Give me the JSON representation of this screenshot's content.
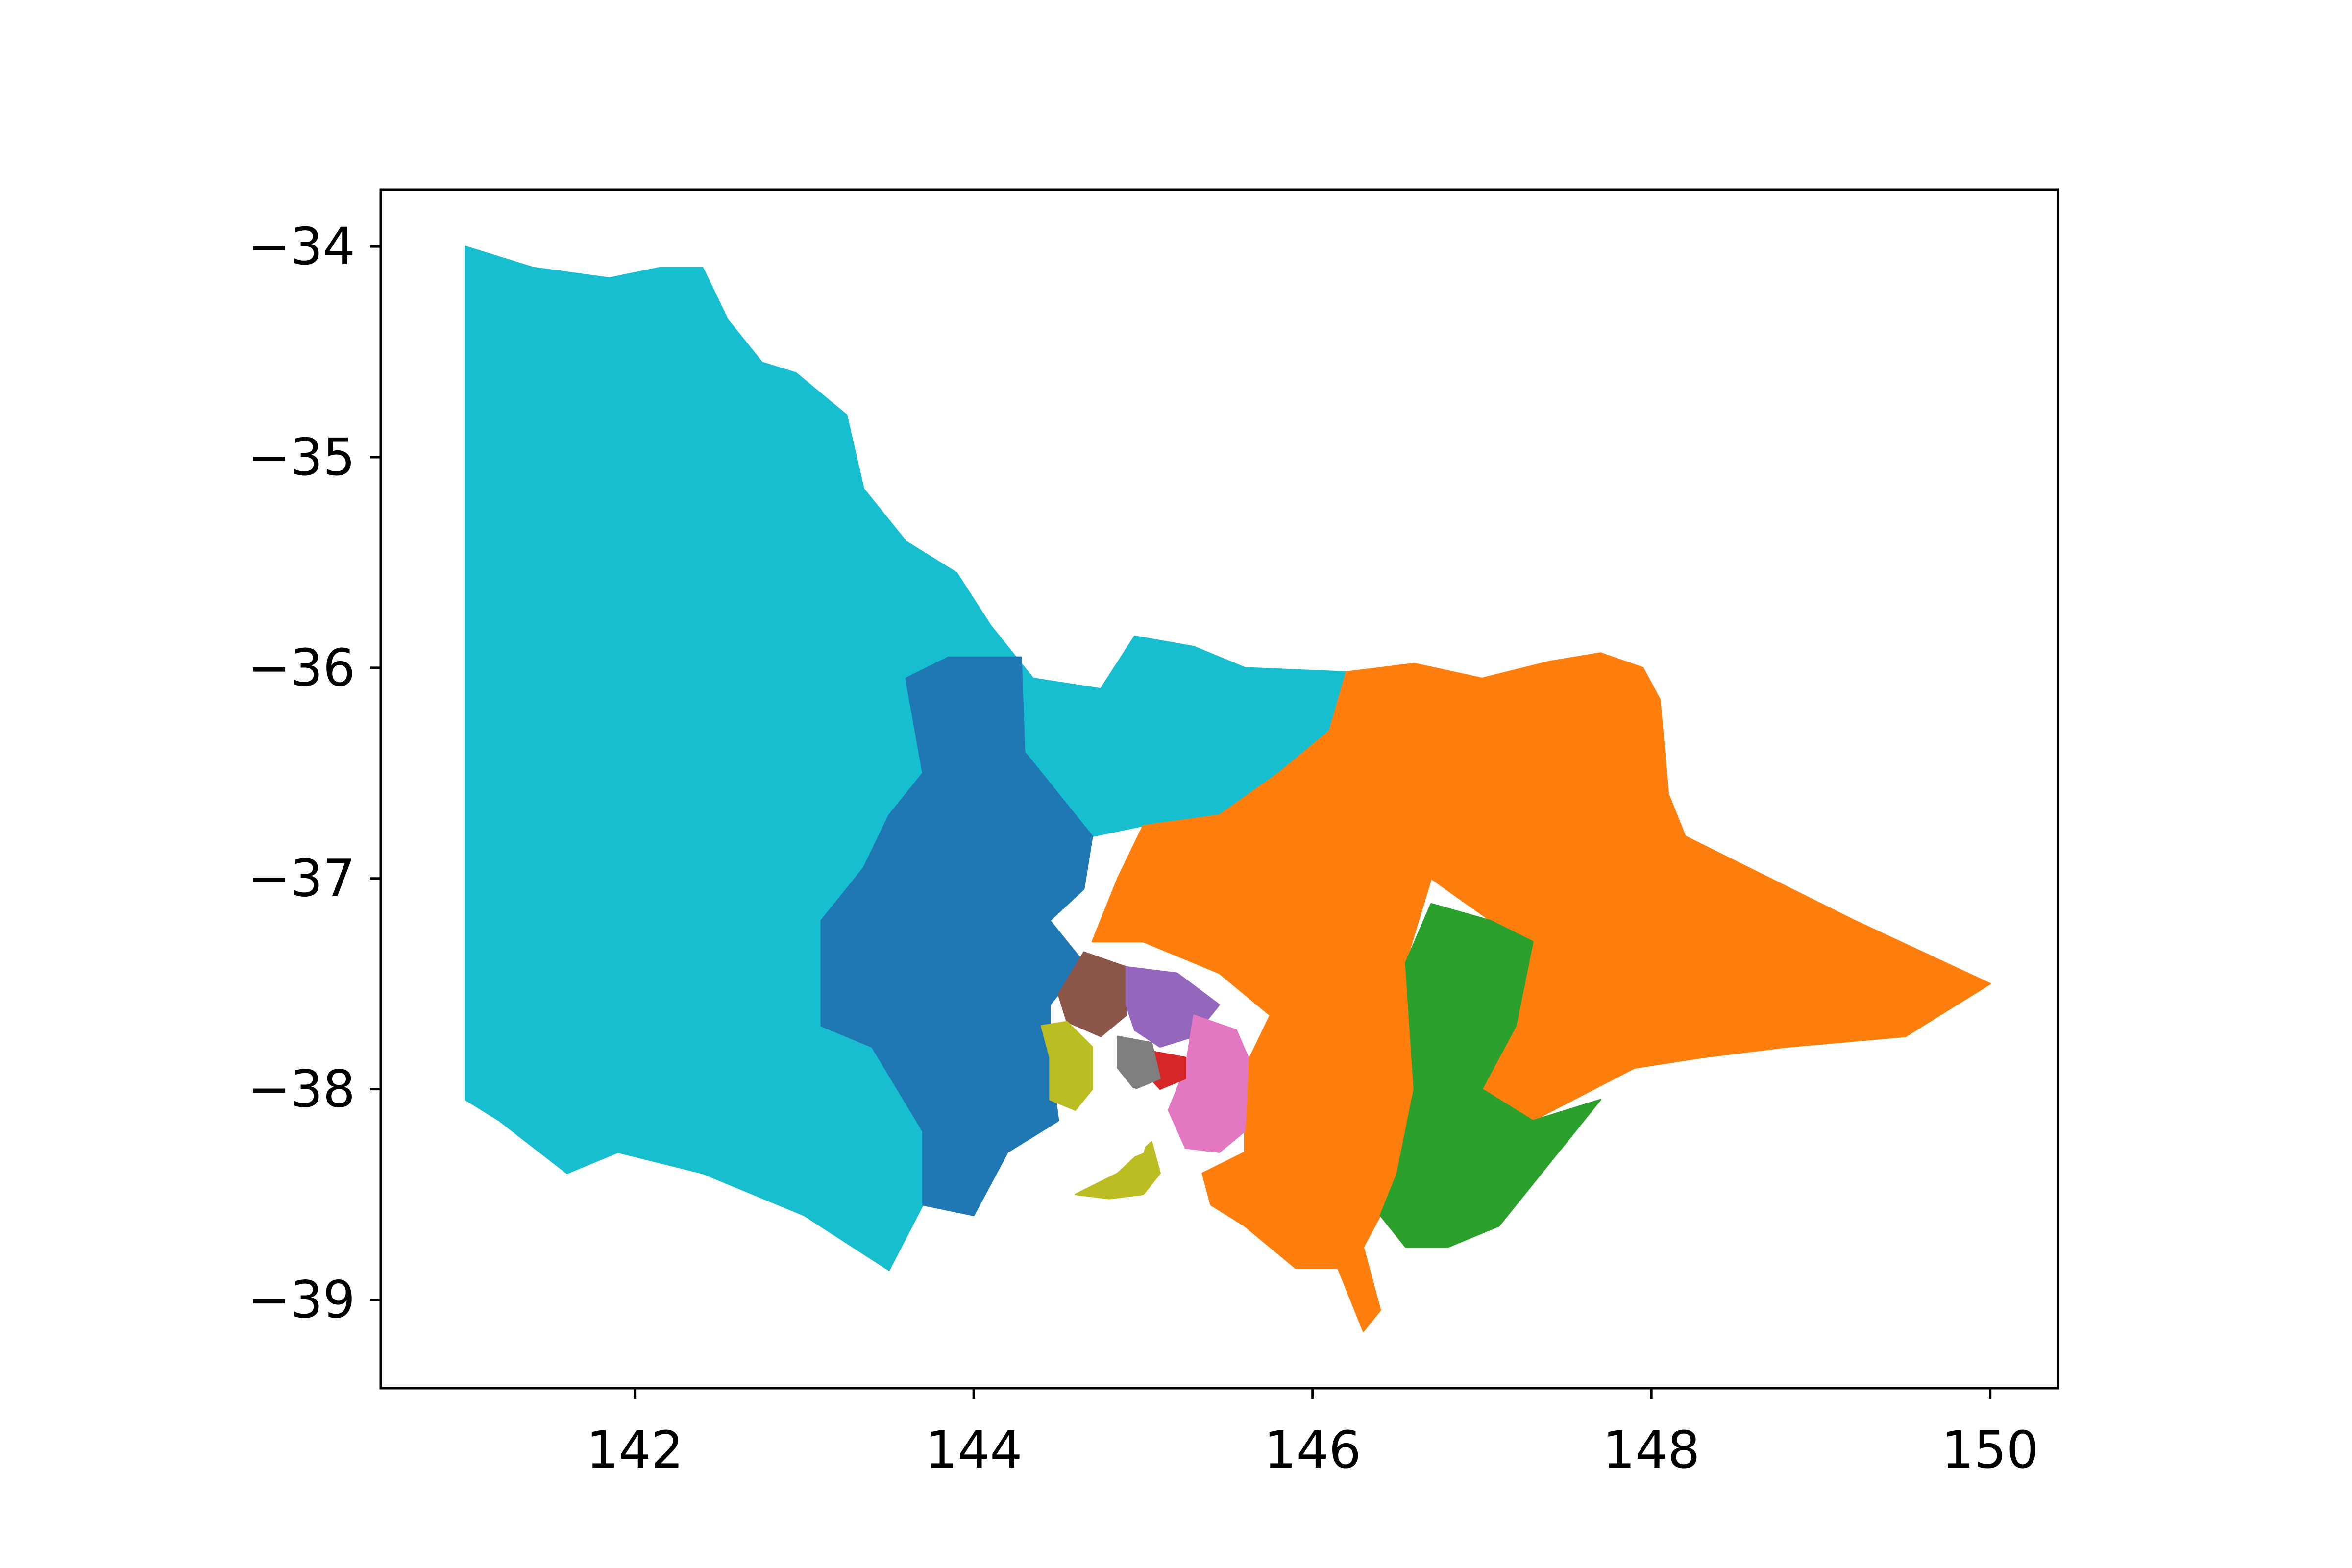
{
  "chart_data": {
    "type": "map",
    "title": "",
    "xlabel": "",
    "ylabel": "",
    "xlim": [
      140.5,
      150.4
    ],
    "ylim": [
      -39.42,
      -33.73
    ],
    "grid": false,
    "legend": "none",
    "x_ticks": [
      142,
      144,
      146,
      148,
      150
    ],
    "y_ticks": [
      -34,
      -35,
      -36,
      -37,
      -38,
      -39
    ],
    "x_tick_labels": [
      "142",
      "144",
      "146",
      "148",
      "150"
    ],
    "y_tick_labels": [
      "−34",
      "−35",
      "−36",
      "−37",
      "−38",
      "−39"
    ],
    "regions": [
      {
        "id": "west",
        "color": "#17becf",
        "outline": [
          [
            141.0,
            -34.0
          ],
          [
            141.4,
            -34.1
          ],
          [
            141.85,
            -34.15
          ],
          [
            142.15,
            -34.1
          ],
          [
            142.4,
            -34.1
          ],
          [
            142.55,
            -34.35
          ],
          [
            142.75,
            -34.55
          ],
          [
            142.95,
            -34.6
          ],
          [
            143.25,
            -34.8
          ],
          [
            143.35,
            -35.15
          ],
          [
            143.6,
            -35.4
          ],
          [
            143.9,
            -35.55
          ],
          [
            144.1,
            -35.8
          ],
          [
            144.35,
            -36.05
          ],
          [
            144.75,
            -36.1
          ],
          [
            144.95,
            -35.85
          ],
          [
            145.3,
            -35.9
          ],
          [
            145.6,
            -36.0
          ],
          [
            146.2,
            -36.02
          ],
          [
            146.1,
            -36.3
          ],
          [
            145.8,
            -36.5
          ],
          [
            145.45,
            -36.7
          ],
          [
            145.0,
            -36.75
          ],
          [
            144.7,
            -36.8
          ],
          [
            144.5,
            -36.6
          ],
          [
            144.3,
            -36.4
          ],
          [
            144.28,
            -35.95
          ],
          [
            143.85,
            -35.95
          ],
          [
            143.6,
            -36.05
          ],
          [
            143.7,
            -36.5
          ],
          [
            143.5,
            -36.7
          ],
          [
            143.35,
            -36.95
          ],
          [
            143.1,
            -37.2
          ],
          [
            143.1,
            -37.7
          ],
          [
            143.4,
            -37.8
          ],
          [
            143.7,
            -38.2
          ],
          [
            143.7,
            -38.55
          ],
          [
            143.5,
            -38.86
          ],
          [
            143.0,
            -38.6
          ],
          [
            142.4,
            -38.4
          ],
          [
            141.9,
            -38.3
          ],
          [
            141.6,
            -38.4
          ],
          [
            141.2,
            -38.15
          ],
          [
            141.0,
            -38.05
          ]
        ]
      },
      {
        "id": "central",
        "color": "#1f77b4",
        "outline": [
          [
            143.6,
            -36.05
          ],
          [
            143.85,
            -35.95
          ],
          [
            144.28,
            -35.95
          ],
          [
            144.3,
            -36.4
          ],
          [
            144.5,
            -36.6
          ],
          [
            144.7,
            -36.8
          ],
          [
            144.65,
            -37.05
          ],
          [
            144.45,
            -37.2
          ],
          [
            144.65,
            -37.4
          ],
          [
            144.45,
            -37.6
          ],
          [
            144.45,
            -37.85
          ],
          [
            144.5,
            -38.15
          ],
          [
            144.2,
            -38.3
          ],
          [
            144.0,
            -38.6
          ],
          [
            143.7,
            -38.55
          ],
          [
            143.7,
            -38.2
          ],
          [
            143.4,
            -37.8
          ],
          [
            143.1,
            -37.7
          ],
          [
            143.1,
            -37.2
          ],
          [
            143.35,
            -36.95
          ],
          [
            143.5,
            -36.7
          ],
          [
            143.7,
            -36.5
          ]
        ]
      },
      {
        "id": "north-east",
        "color": "#ff7f0e",
        "outline": [
          [
            145.0,
            -36.75
          ],
          [
            145.45,
            -36.7
          ],
          [
            145.8,
            -36.5
          ],
          [
            146.1,
            -36.3
          ],
          [
            146.2,
            -36.02
          ],
          [
            146.6,
            -35.98
          ],
          [
            147.0,
            -36.05
          ],
          [
            147.4,
            -35.97
          ],
          [
            147.7,
            -35.93
          ],
          [
            147.95,
            -36.0
          ],
          [
            148.05,
            -36.15
          ],
          [
            148.1,
            -36.6
          ],
          [
            148.2,
            -36.8
          ],
          [
            149.2,
            -37.2
          ],
          [
            150.0,
            -37.5
          ],
          [
            149.8,
            -37.6
          ],
          [
            149.5,
            -37.75
          ],
          [
            148.8,
            -37.8
          ],
          [
            148.3,
            -37.85
          ],
          [
            147.9,
            -37.9
          ],
          [
            147.3,
            -38.15
          ],
          [
            147.0,
            -38.0
          ],
          [
            147.2,
            -37.7
          ],
          [
            147.3,
            -37.3
          ],
          [
            147.05,
            -37.2
          ],
          [
            146.7,
            -37.0
          ],
          [
            146.55,
            -37.4
          ],
          [
            146.6,
            -38.0
          ],
          [
            146.5,
            -38.4
          ],
          [
            146.4,
            -38.6
          ],
          [
            146.3,
            -38.75
          ],
          [
            146.4,
            -39.05
          ],
          [
            146.3,
            -39.15
          ],
          [
            146.15,
            -38.85
          ],
          [
            145.9,
            -38.85
          ],
          [
            145.6,
            -38.65
          ],
          [
            145.4,
            -38.55
          ],
          [
            145.35,
            -38.4
          ],
          [
            145.6,
            -38.3
          ],
          [
            145.6,
            -37.9
          ],
          [
            145.75,
            -37.65
          ],
          [
            145.45,
            -37.45
          ],
          [
            145.0,
            -37.3
          ],
          [
            144.7,
            -37.3
          ],
          [
            144.85,
            -37.0
          ]
        ]
      },
      {
        "id": "gippsland-south",
        "color": "#2ca02c",
        "outline": [
          [
            146.7,
            -37.12
          ],
          [
            147.05,
            -37.2
          ],
          [
            147.3,
            -37.3
          ],
          [
            147.2,
            -37.7
          ],
          [
            147.0,
            -38.0
          ],
          [
            147.3,
            -38.15
          ],
          [
            147.7,
            -38.05
          ],
          [
            147.35,
            -38.4
          ],
          [
            147.1,
            -38.65
          ],
          [
            146.8,
            -38.75
          ],
          [
            146.55,
            -38.75
          ],
          [
            146.4,
            -38.6
          ],
          [
            146.5,
            -38.4
          ],
          [
            146.6,
            -38.0
          ],
          [
            146.55,
            -37.4
          ]
        ]
      },
      {
        "id": "north-west-metro",
        "color": "#8c564b",
        "outline": [
          [
            144.65,
            -37.35
          ],
          [
            144.9,
            -37.42
          ],
          [
            144.9,
            -37.65
          ],
          [
            144.75,
            -37.75
          ],
          [
            144.55,
            -37.68
          ],
          [
            144.5,
            -37.55
          ]
        ]
      },
      {
        "id": "north-east-metro",
        "color": "#9467bd",
        "outline": [
          [
            144.9,
            -37.42
          ],
          [
            145.2,
            -37.45
          ],
          [
            145.45,
            -37.6
          ],
          [
            145.3,
            -37.75
          ],
          [
            145.1,
            -37.8
          ],
          [
            144.95,
            -37.72
          ],
          [
            144.9,
            -37.6
          ]
        ]
      },
      {
        "id": "eastern-metro",
        "color": "#e377c2",
        "outline": [
          [
            145.3,
            -37.65
          ],
          [
            145.55,
            -37.72
          ],
          [
            145.62,
            -37.85
          ],
          [
            145.6,
            -38.2
          ],
          [
            145.45,
            -38.3
          ],
          [
            145.25,
            -38.28
          ],
          [
            145.15,
            -38.1
          ],
          [
            145.25,
            -37.9
          ]
        ]
      },
      {
        "id": "southern-metro",
        "color": "#d62728",
        "outline": [
          [
            145.05,
            -37.82
          ],
          [
            145.25,
            -37.85
          ],
          [
            145.25,
            -37.95
          ],
          [
            145.1,
            -38.0
          ],
          [
            145.02,
            -37.93
          ]
        ]
      },
      {
        "id": "western-metro",
        "color": "#bcbd22",
        "outline": [
          [
            144.4,
            -37.7
          ],
          [
            144.55,
            -37.68
          ],
          [
            144.7,
            -37.8
          ],
          [
            144.7,
            -38.0
          ],
          [
            144.6,
            -38.1
          ],
          [
            144.45,
            -38.05
          ],
          [
            144.45,
            -37.85
          ]
        ]
      },
      {
        "id": "bellarine",
        "color": "#bcbd22",
        "outline": [
          [
            144.6,
            -38.5
          ],
          [
            144.85,
            -38.4
          ],
          [
            145.05,
            -38.25
          ],
          [
            145.1,
            -38.4
          ],
          [
            145.0,
            -38.5
          ],
          [
            144.8,
            -38.52
          ]
        ]
      },
      {
        "id": "inner-metro",
        "color": "#7f7f7f",
        "outline": [
          [
            144.85,
            -37.75
          ],
          [
            145.05,
            -37.78
          ],
          [
            145.1,
            -37.95
          ],
          [
            144.95,
            -38.0
          ],
          [
            144.85,
            -37.9
          ]
        ]
      },
      {
        "id": "port-phillip-bay",
        "color": "#ffffff",
        "outline": [
          [
            144.55,
            -38.15
          ],
          [
            144.75,
            -38.0
          ],
          [
            144.95,
            -38.0
          ],
          [
            145.05,
            -38.1
          ],
          [
            145.0,
            -38.3
          ],
          [
            144.85,
            -38.35
          ],
          [
            144.7,
            -38.3
          ],
          [
            144.6,
            -38.25
          ]
        ]
      }
    ]
  }
}
